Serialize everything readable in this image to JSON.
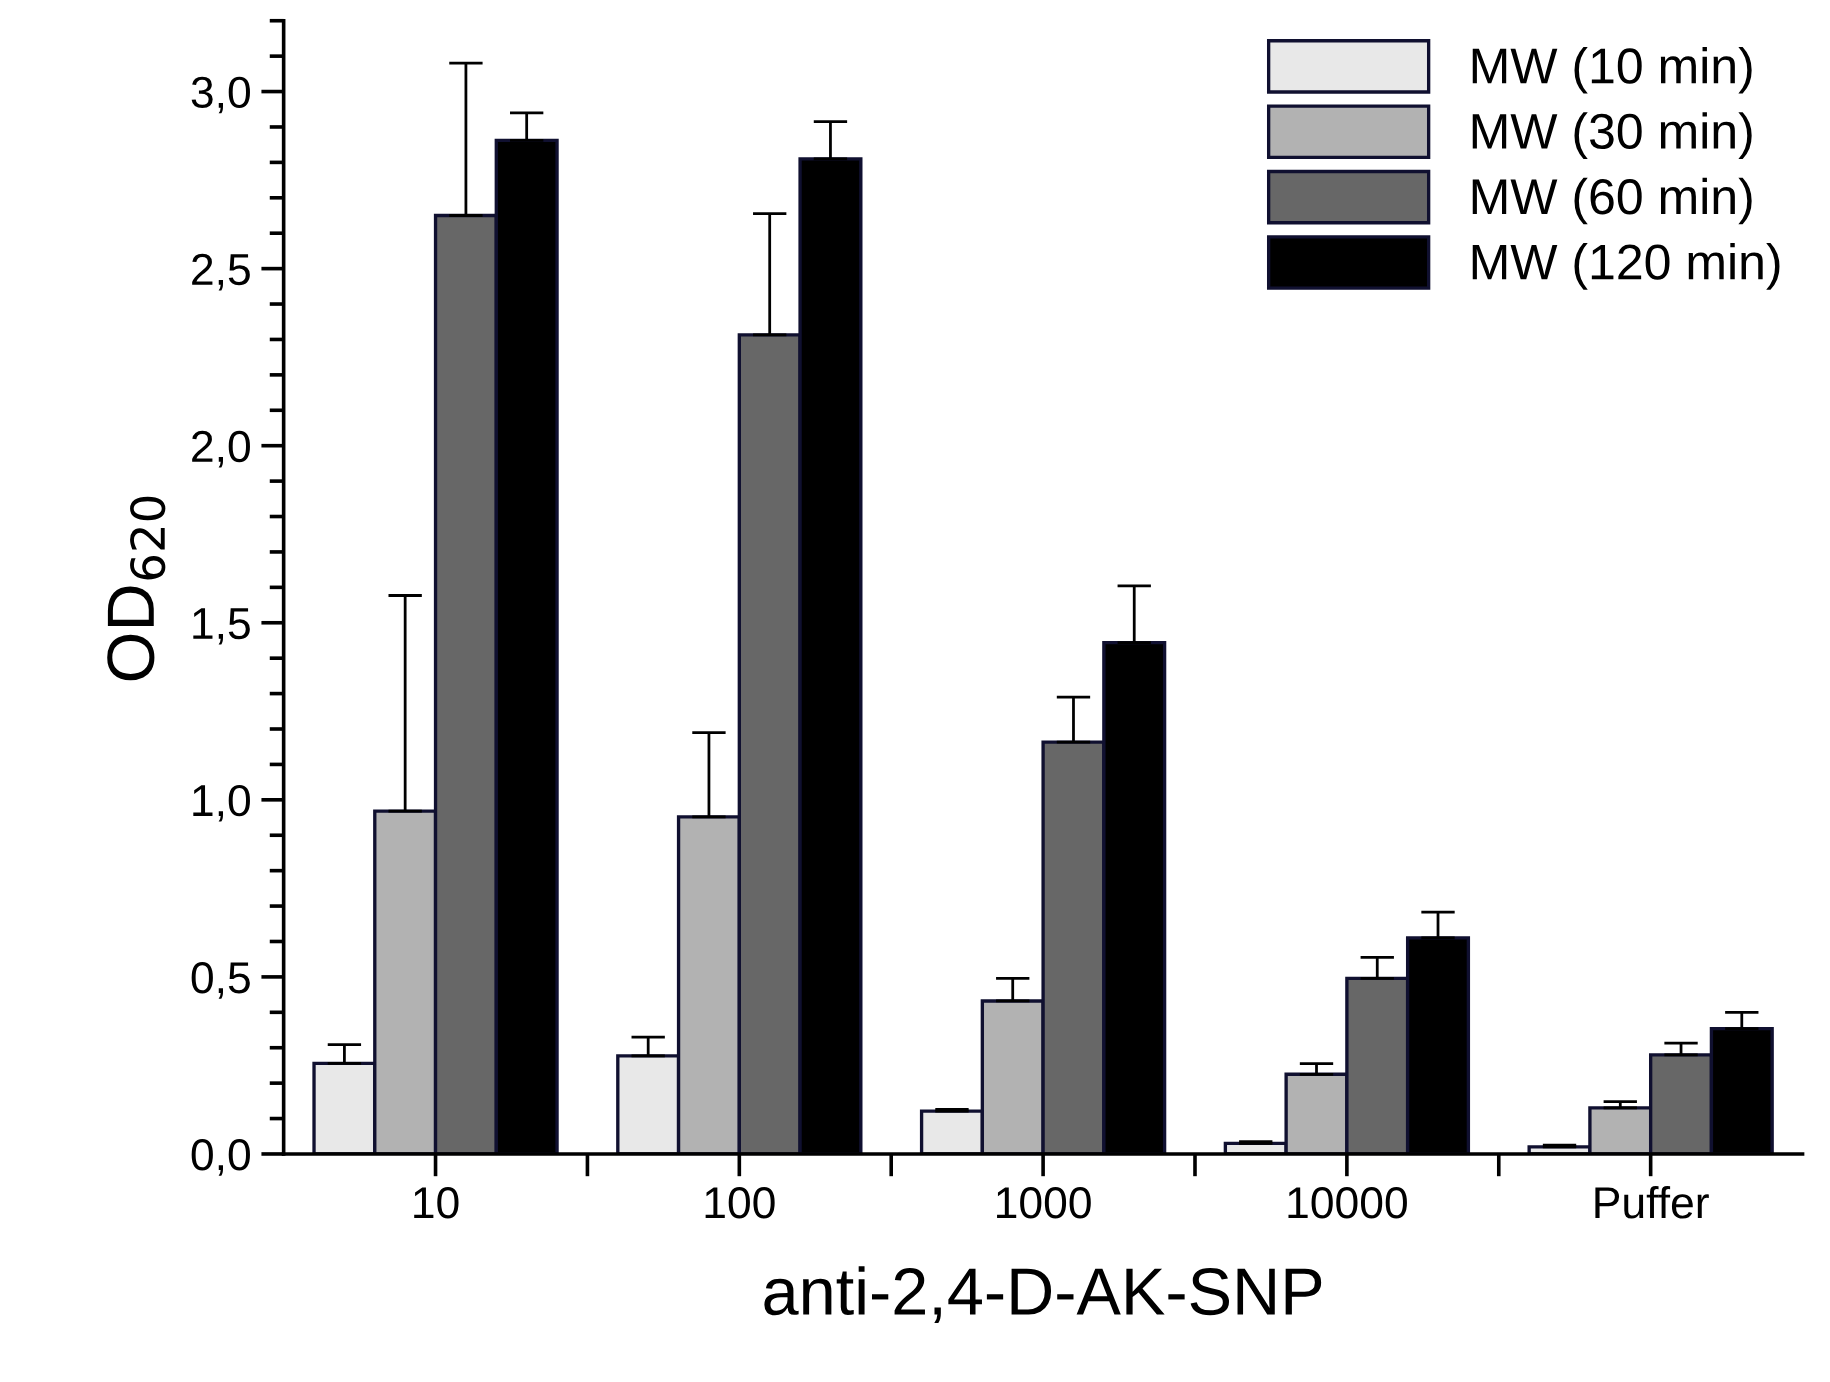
{
  "chart_data": {
    "type": "bar",
    "xlabel": "anti-2,4-D-AK-SNP",
    "ylabel": "OD$_{620}$",
    "categories": [
      "10",
      "100",
      "1000",
      "10000",
      "Puffer"
    ],
    "ylim": [
      0,
      3.2
    ],
    "yticks": [
      {
        "value": 0,
        "label": "0,0"
      },
      {
        "value": 0.5,
        "label": "0,5"
      },
      {
        "value": 1,
        "label": "1,0"
      },
      {
        "value": 1.5,
        "label": "1,5"
      },
      {
        "value": 2,
        "label": "2,0"
      },
      {
        "value": 2.5,
        "label": "2,5"
      },
      {
        "value": 3,
        "label": "3,0"
      }
    ],
    "grid": false,
    "legend": "top right",
    "series": [
      {
        "name": "MW (10 min)",
        "color": "#e8e8e8",
        "values": [
          0.256,
          0.277,
          0.121,
          0.03,
          0.02
        ],
        "errors": [
          [
            0.256,
            0.309
          ],
          [
            0.277,
            0.33
          ],
          [
            0.121,
            0.126
          ],
          [
            0.03,
            0.035
          ],
          [
            0.02,
            0.025
          ]
        ]
      },
      {
        "name": "MW (30 min)",
        "color": "#b2b2b2",
        "values": [
          0.968,
          0.952,
          0.432,
          0.225,
          0.13
        ],
        "errors": [
          [
            0.968,
            1.577
          ],
          [
            0.952,
            1.19
          ],
          [
            0.432,
            0.496
          ],
          [
            0.225,
            0.255
          ],
          [
            0.13,
            0.148
          ]
        ]
      },
      {
        "name": "MW (60 min)",
        "color": "#676767",
        "values": [
          2.65,
          2.313,
          1.163,
          0.496,
          0.28
        ],
        "errors": [
          [
            2.65,
            3.08
          ],
          [
            2.313,
            2.655
          ],
          [
            1.163,
            1.29
          ],
          [
            0.496,
            0.555
          ],
          [
            0.28,
            0.313
          ]
        ]
      },
      {
        "name": "MW (120 min)",
        "color": "#000000",
        "values": [
          2.862,
          2.81,
          1.444,
          0.61,
          0.354
        ],
        "errors": [
          [
            2.862,
            2.94
          ],
          [
            2.81,
            2.915
          ],
          [
            1.444,
            1.604
          ],
          [
            0.61,
            0.683
          ],
          [
            0.354,
            0.4
          ]
        ]
      }
    ]
  }
}
